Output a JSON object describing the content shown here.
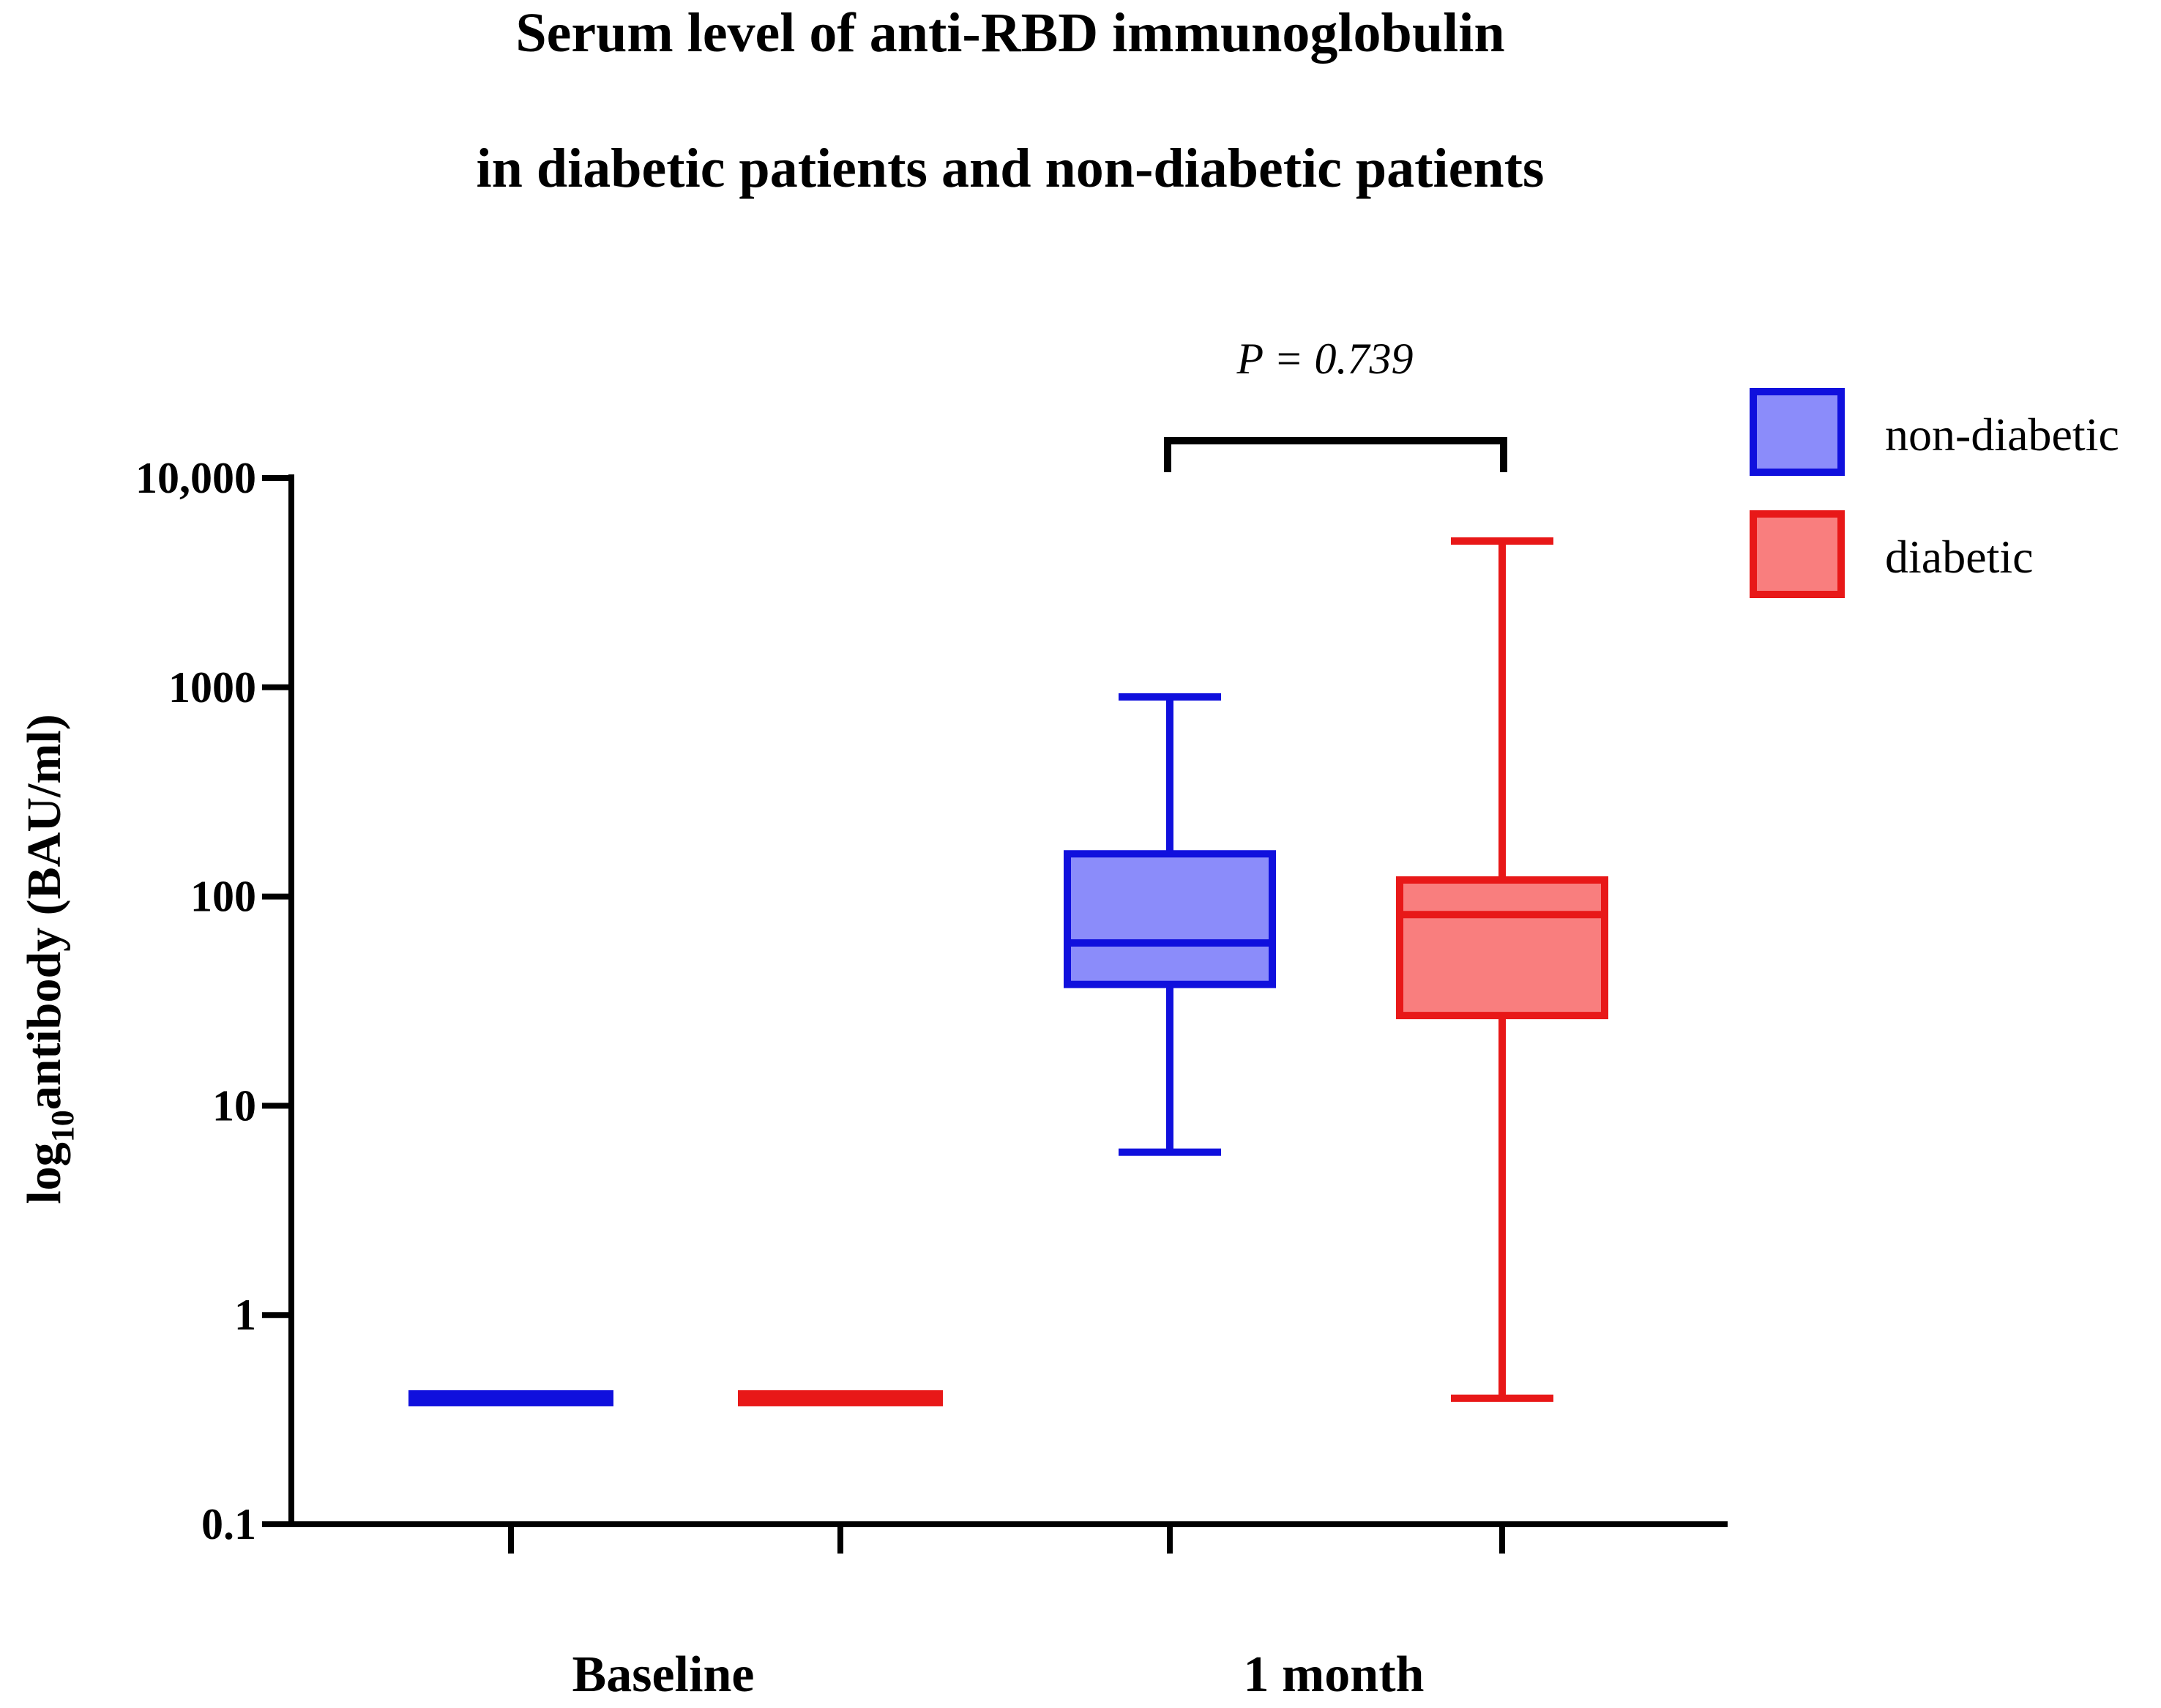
{
  "chart_data": {
    "type": "box",
    "title_lines": [
      "Serum level of anti-RBD immunoglobulin",
      "in diabetic patients and non-diabetic patients"
    ],
    "ylabel": {
      "prefix": "log",
      "subscript": "10",
      "suffix": "antibody (BAU/ml)"
    },
    "yscale": "log10",
    "ylim": [
      0.1,
      10000
    ],
    "yticks": [
      {
        "value": 0.1,
        "label": "0.1"
      },
      {
        "value": 1,
        "label": "1"
      },
      {
        "value": 10,
        "label": "10"
      },
      {
        "value": 100,
        "label": "100"
      },
      {
        "value": 1000,
        "label": "1000"
      },
      {
        "value": 10000,
        "label": "10,000"
      }
    ],
    "categories": [
      "Baseline",
      "1 month"
    ],
    "series": [
      {
        "name": "non-diabetic",
        "stroke": "#1010dd",
        "fill": "#8b8cfa",
        "boxes": [
          {
            "category": "Baseline",
            "min": 0.4,
            "q1": 0.4,
            "median": 0.4,
            "q3": 0.4,
            "max": 0.4
          },
          {
            "category": "1 month",
            "min": 6,
            "q1": 38,
            "median": 60,
            "q3": 160,
            "max": 900
          }
        ]
      },
      {
        "name": "diabetic",
        "stroke": "#e81818",
        "fill": "#f97e7e",
        "boxes": [
          {
            "category": "Baseline",
            "min": 0.4,
            "q1": 0.4,
            "median": 0.4,
            "q3": 0.4,
            "max": 0.4
          },
          {
            "category": "1 month",
            "min": 0.4,
            "q1": 27,
            "median": 82,
            "q3": 120,
            "max": 5000
          }
        ]
      }
    ],
    "annotations": [
      {
        "text": "P = 0.739",
        "category": "1 month",
        "between": [
          "non-diabetic",
          "diabetic"
        ]
      }
    ],
    "legend": {
      "position": "top-right",
      "entries": [
        "non-diabetic",
        "diabetic"
      ]
    }
  }
}
